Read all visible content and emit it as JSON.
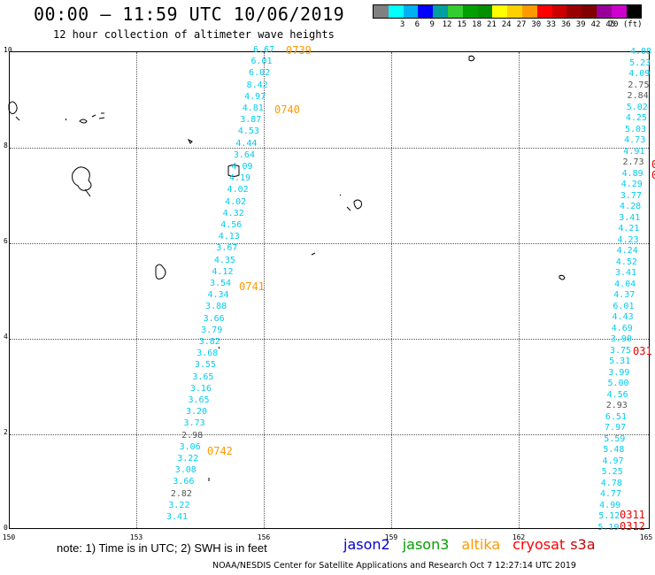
{
  "title": "00:00 – 11:59 UTC 10/06/2019",
  "subtitle": "12 hour collection of altimeter wave heights",
  "legend": {
    "colors": [
      "#808080",
      "#00ffff",
      "#00b0f0",
      "#0000ff",
      "#00a0a0",
      "#33cc33",
      "#00a000",
      "#009000",
      "#ffff00",
      "#ffd000",
      "#ff9900",
      "#ff0000",
      "#cc0000",
      "#990000",
      "#800000",
      "#990099",
      "#cc00cc",
      "#000000"
    ],
    "labels": [
      "3",
      "6",
      "9",
      "12",
      "15",
      "18",
      "21",
      "24",
      "27",
      "30",
      "33",
      "36",
      "39",
      "42",
      "45",
      "70 (ft)"
    ]
  },
  "axes": {
    "y_ticks": [
      "10",
      "8",
      "6",
      "4",
      "2",
      "0"
    ],
    "x_ticks": [
      "150",
      "153",
      "156",
      "159",
      "162",
      "165"
    ],
    "xlim": [
      150,
      165
    ],
    "ylim": [
      0,
      10
    ]
  },
  "track_west": {
    "values": [
      "6.67",
      "6.01",
      "6.02",
      "8.42",
      "4.97",
      "4.81",
      "3.87",
      "4.53",
      "4.44",
      "3.64",
      "4.09",
      "4.19",
      "4.02",
      "4.02",
      "4.32",
      "4.56",
      "4.13",
      "3.67",
      "4.35",
      "4.12",
      "3.54",
      "4.34",
      "3.88",
      "3.66",
      "3.79",
      "3.82",
      "3.68",
      "3.55",
      "3.65",
      "3.16",
      "3.65",
      "3.20",
      "3.73",
      "2.98",
      "3.06",
      "3.22",
      "3.08",
      "3.66",
      "2.82",
      "3.22",
      "3.41"
    ],
    "colors": [
      "c",
      "c",
      "c",
      "c",
      "c",
      "c",
      "c",
      "c",
      "c",
      "c",
      "c",
      "c",
      "c",
      "c",
      "c",
      "c",
      "c",
      "c",
      "c",
      "c",
      "c",
      "c",
      "c",
      "c",
      "c",
      "c",
      "c",
      "c",
      "c",
      "c",
      "c",
      "c",
      "c",
      "g",
      "c",
      "c",
      "c",
      "c",
      "g",
      "c",
      "c"
    ],
    "times": [
      "0739",
      "0740",
      "0741",
      "0742"
    ]
  },
  "track_east": {
    "values": [
      "4.08",
      "5.23",
      "4.09",
      "2.75",
      "2.84",
      "5.02",
      "4.25",
      "5.03",
      "4.73",
      "4.91",
      "2.73",
      "4.89",
      "4.29",
      "3.77",
      "4.28",
      "3.41",
      "4.21",
      "4.23",
      "4.24",
      "4.52",
      "3.41",
      "4.04",
      "4.37",
      "6.01",
      "4.43",
      "4.69",
      "3.90",
      "3.75",
      "5.31",
      "3.99",
      "5.00",
      "4.56",
      "2.93",
      "6.51",
      "7.97",
      "5.59",
      "5.48",
      "4.97",
      "5.25",
      "4.78",
      "4.77",
      "4.99",
      "5.12",
      "5.19"
    ],
    "colors": [
      "c",
      "c",
      "c",
      "g",
      "g",
      "c",
      "c",
      "c",
      "c",
      "c",
      "g",
      "c",
      "c",
      "c",
      "c",
      "c",
      "c",
      "c",
      "c",
      "c",
      "c",
      "c",
      "c",
      "c",
      "c",
      "c",
      "c",
      "c",
      "c",
      "c",
      "c",
      "c",
      "g",
      "c",
      "c",
      "c",
      "c",
      "c",
      "c",
      "c",
      "c",
      "c",
      "c",
      "c"
    ],
    "times": [
      "0",
      "0",
      "031",
      "0311",
      "0312"
    ]
  },
  "note": "note:  1) Time is in UTC;  2) SWH is in feet",
  "satellites": [
    {
      "name": "jason2",
      "color": "#0000cc"
    },
    {
      "name": "jason3",
      "color": "#00a000"
    },
    {
      "name": "altika",
      "color": "#ff9900"
    },
    {
      "name": "cryosat",
      "color": "#ff0000"
    },
    {
      "name": "s3a",
      "color": "#cc0000"
    }
  ],
  "credit": "NOAA/NESDIS Center for Satellite Applications and Research    Oct  7 12:27:14 UTC 2019",
  "value_colors": {
    "c": "#00ccee",
    "g": "#555555"
  },
  "time_colors": {
    "west": "#ff9900",
    "east": "#ee0000"
  }
}
